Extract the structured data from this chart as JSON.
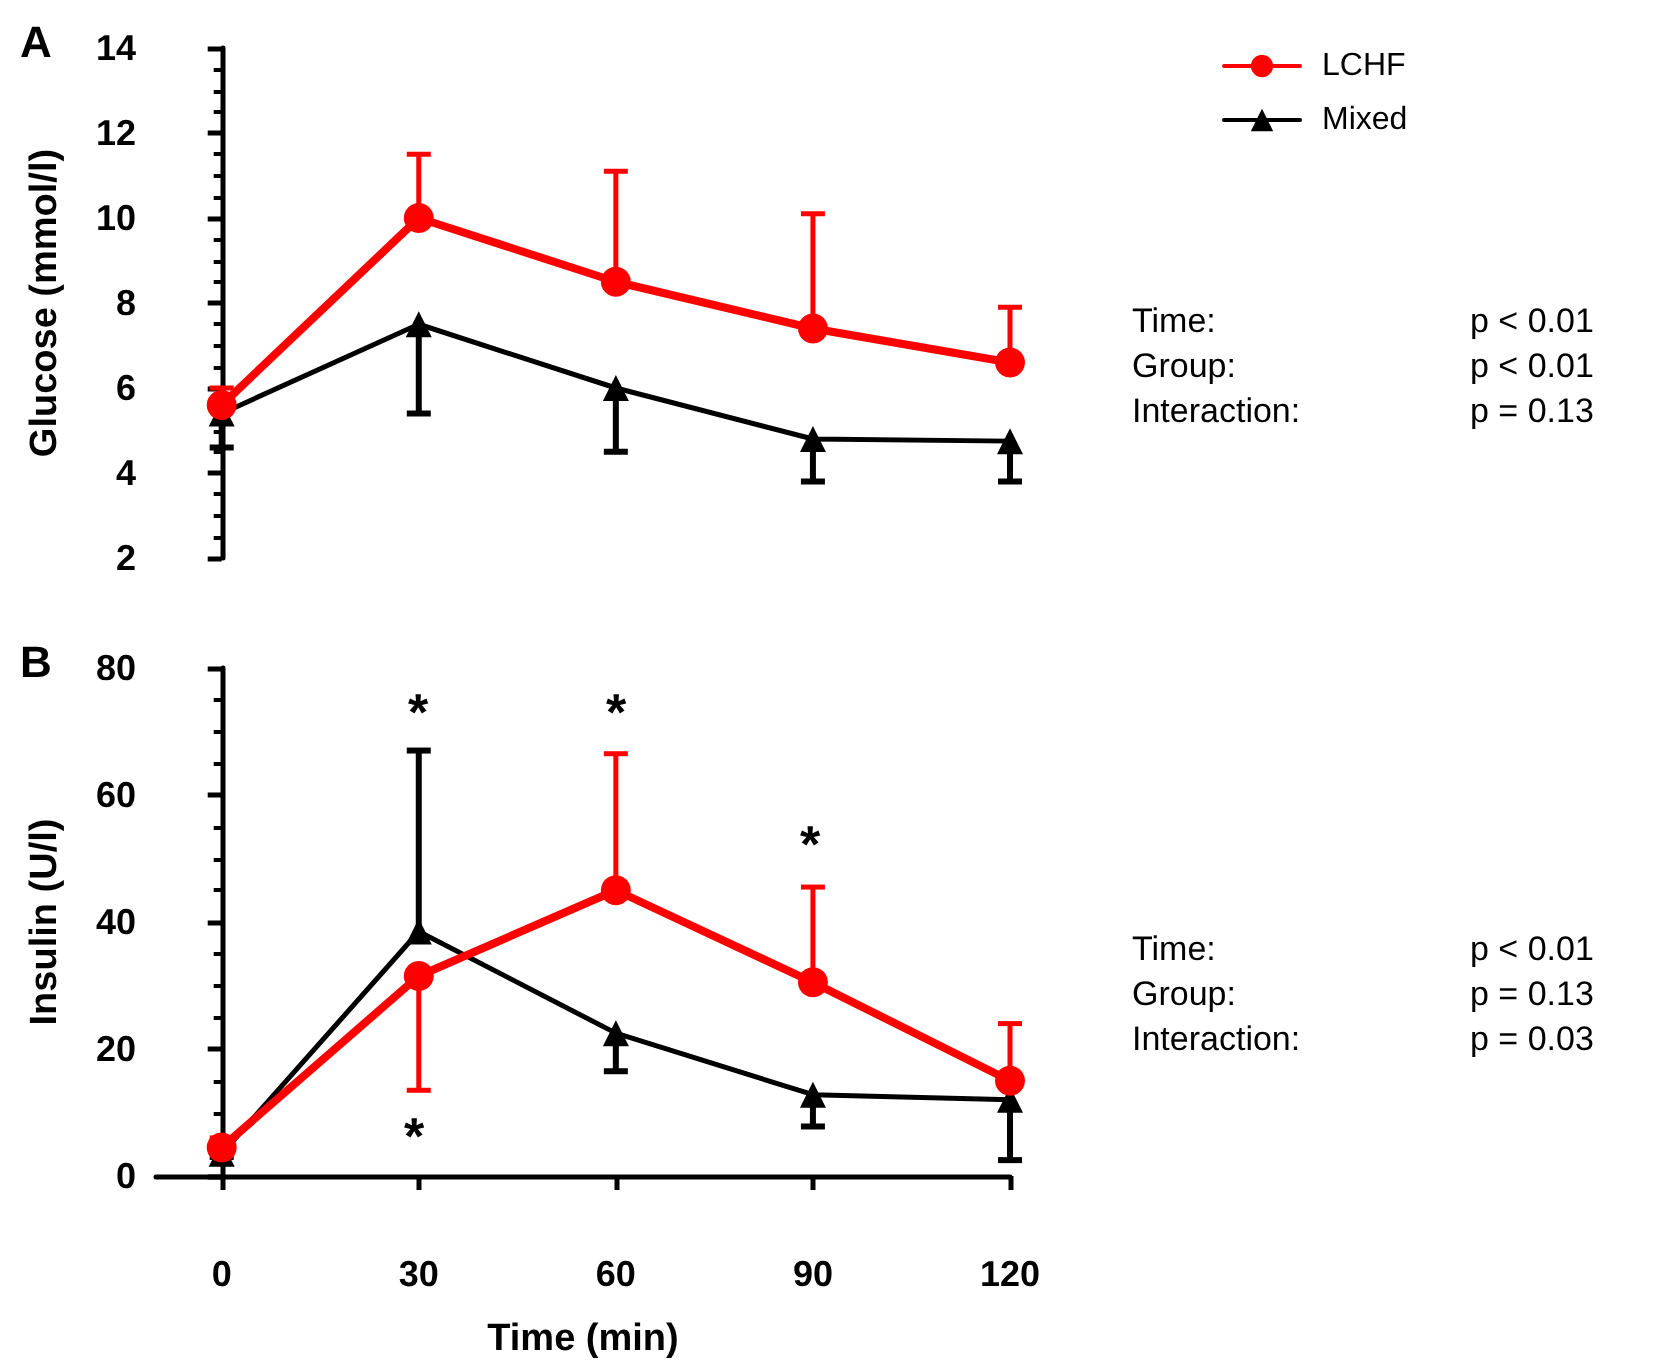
{
  "chart_data": [
    {
      "type": "line",
      "title": "A",
      "ylabel": "Glucose (mmol/l)",
      "x": [
        0,
        30,
        60,
        90,
        120
      ],
      "ylim": [
        2,
        14
      ],
      "yticks": [
        2,
        4,
        6,
        8,
        10,
        12,
        14
      ],
      "tick_labels": "y",
      "grid": false,
      "legend": "top right",
      "series": [
        {
          "name": "LCHF",
          "color": "#ff0000",
          "marker": "circle",
          "values": [
            5.6,
            10.0,
            8.5,
            7.4,
            6.6
          ],
          "errors": [
            [
              5.6,
              6.0
            ],
            [
              10.0,
              11.5
            ],
            [
              8.5,
              11.1
            ],
            [
              7.4,
              10.1
            ],
            [
              6.6,
              7.9
            ]
          ]
        },
        {
          "name": "Mixed",
          "color": "#000000",
          "marker": "triangle",
          "values": [
            5.4,
            7.5,
            6.0,
            4.8,
            4.75
          ],
          "errors": [
            [
              4.6,
              5.4
            ],
            [
              5.4,
              7.5
            ],
            [
              4.5,
              6.0
            ],
            [
              3.8,
              4.8
            ],
            [
              3.8,
              4.75
            ]
          ]
        }
      ],
      "annotations": [
        "Time:",
        "p < 0.01",
        "Group:",
        "p < 0.01",
        "Interaction:",
        "p = 0.13"
      ]
    },
    {
      "type": "line",
      "title": "B",
      "xlabel": "Time (min)",
      "ylabel": "Insulin (U/l)",
      "x": [
        0,
        30,
        60,
        90,
        120
      ],
      "xlim": [
        -10,
        120
      ],
      "xticks": [
        0,
        30,
        60,
        90,
        120
      ],
      "ylim": [
        0,
        80
      ],
      "yticks": [
        0,
        20,
        40,
        60,
        80
      ],
      "grid": false,
      "series": [
        {
          "color": "#ff0000",
          "marker": "circle",
          "values": [
            4.5,
            31.5,
            45,
            30.5,
            15
          ],
          "errors": [
            [
              4.5,
              6
            ],
            [
              13.5,
              31.5
            ],
            [
              45,
              66.5
            ],
            [
              30.5,
              45.5
            ],
            [
              15,
              24
            ]
          ]
        },
        {
          "color": "#000000",
          "marker": "triangle",
          "values": [
            3.5,
            38.5,
            22.5,
            12.8,
            12
          ],
          "errors": [
            [
              3,
              3.5
            ],
            [
              38.5,
              67
            ],
            [
              16.5,
              22.5
            ],
            [
              7.8,
              12.8
            ],
            [
              2.5,
              12
            ]
          ]
        }
      ],
      "annotations": [
        "*",
        "*",
        "*",
        "*",
        "Time:",
        "p < 0.01",
        "Group:",
        "p = 0.13",
        "Interaction:",
        "p = 0.03"
      ]
    }
  ]
}
